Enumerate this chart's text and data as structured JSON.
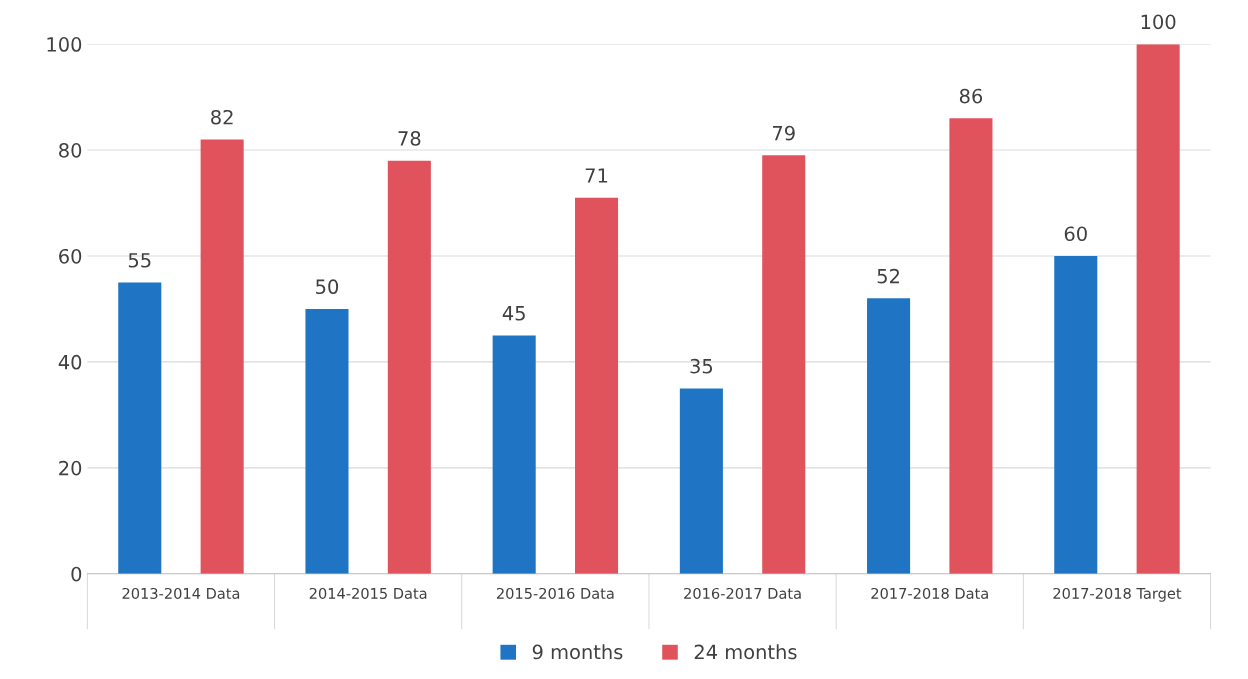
{
  "chart_data": {
    "type": "bar",
    "categories": [
      "2013-2014 Data",
      "2014-2015 Data",
      "2015-2016 Data",
      "2016-2017 Data",
      "2017-2018 Data",
      "2017-2018 Target"
    ],
    "series": [
      {
        "name": "9 months",
        "color": "#1f74c4",
        "values": [
          55,
          50,
          45,
          35,
          52,
          60
        ]
      },
      {
        "name": "24 months",
        "color": "#e0525c",
        "values": [
          82,
          78,
          71,
          79,
          86,
          100
        ]
      }
    ],
    "ylim": [
      0,
      100
    ],
    "yticks": [
      0,
      20,
      40,
      60,
      80,
      100
    ],
    "grid": "y",
    "legend": "bottom",
    "data_labels": true
  }
}
